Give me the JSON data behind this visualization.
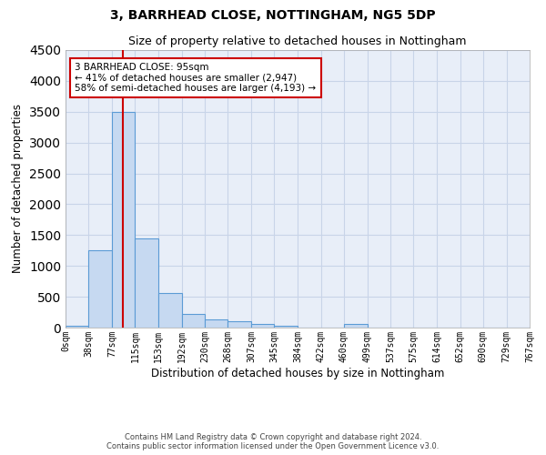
{
  "title1": "3, BARRHEAD CLOSE, NOTTINGHAM, NG5 5DP",
  "title2": "Size of property relative to detached houses in Nottingham",
  "xlabel": "Distribution of detached houses by size in Nottingham",
  "ylabel": "Number of detached properties",
  "bar_edges": [
    0,
    38,
    77,
    115,
    153,
    192,
    230,
    268,
    307,
    345,
    384,
    422,
    460,
    499,
    537,
    575,
    614,
    652,
    690,
    729,
    767
  ],
  "bar_heights": [
    25,
    1250,
    3500,
    1450,
    560,
    215,
    130,
    100,
    65,
    30,
    0,
    0,
    65,
    0,
    0,
    0,
    0,
    0,
    0,
    0
  ],
  "bar_color": "#c6d9f1",
  "bar_edge_color": "#5b9bd5",
  "property_line_x": 95,
  "property_line_color": "#cc0000",
  "annotation_text": "3 BARRHEAD CLOSE: 95sqm\n← 41% of detached houses are smaller (2,947)\n58% of semi-detached houses are larger (4,193) →",
  "annotation_box_color": "#cc0000",
  "ylim": [
    0,
    4500
  ],
  "xlim": [
    0,
    767
  ],
  "grid_color": "#c8d4e8",
  "background_color": "#e8eef8",
  "footer1": "Contains HM Land Registry data © Crown copyright and database right 2024.",
  "footer2": "Contains public sector information licensed under the Open Government Licence v3.0.",
  "tick_labels": [
    "0sqm",
    "38sqm",
    "77sqm",
    "115sqm",
    "153sqm",
    "192sqm",
    "230sqm",
    "268sqm",
    "307sqm",
    "345sqm",
    "384sqm",
    "422sqm",
    "460sqm",
    "499sqm",
    "537sqm",
    "575sqm",
    "614sqm",
    "652sqm",
    "690sqm",
    "729sqm",
    "767sqm"
  ]
}
